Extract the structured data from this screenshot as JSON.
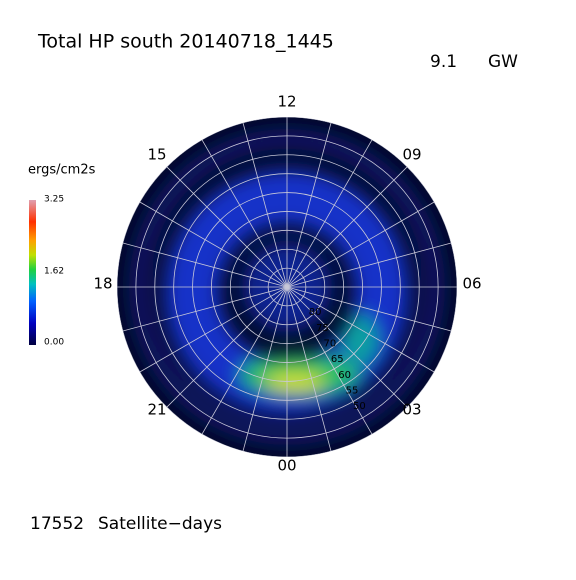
{
  "header": {
    "title": "Total HP south 20140718_1445",
    "power": "9.1",
    "power_unit": "GW"
  },
  "colorbar": {
    "label": "ergs/cm2s",
    "ticks": [
      "3.25",
      "1.62",
      "0.00"
    ]
  },
  "clock_labels": [
    "12",
    "09",
    "06",
    "03",
    "00",
    "21",
    "18",
    "15"
  ],
  "latitude_labels": [
    "80",
    "75",
    "70",
    "65",
    "60",
    "55",
    "50"
  ],
  "footer": {
    "count": "17552",
    "unit": "Satellite−days"
  }
}
